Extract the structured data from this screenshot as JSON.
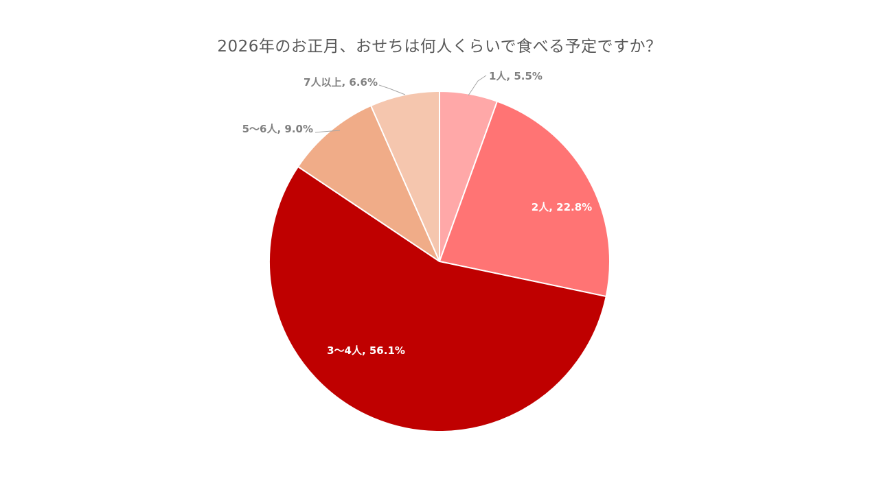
{
  "chart_data": {
    "type": "pie",
    "title": "2026年のお正月、おせちは何人くらいで食べる予定ですか？",
    "unit": "%",
    "slices": [
      {
        "label": "1人",
        "value": 5.5,
        "display": "1人, 5.5%",
        "color": "#FFA8A8",
        "label_placement": "outside"
      },
      {
        "label": "2人",
        "value": 22.8,
        "display": "2人, 22.8%",
        "color": "#FF7474",
        "label_placement": "inside"
      },
      {
        "label": "3〜4人",
        "value": 56.1,
        "display": "3〜4人, 56.1%",
        "color": "#BF0000",
        "label_placement": "inside"
      },
      {
        "label": "5〜6人",
        "value": 9.0,
        "display": "5〜6人, 9.0%",
        "color": "#F0AC88",
        "label_placement": "outside"
      },
      {
        "label": "7人以上",
        "value": 6.6,
        "display": "7人以上, 6.6%",
        "color": "#F5C6AE",
        "label_placement": "outside"
      }
    ],
    "start_angle": "12 o'clock",
    "direction": "clockwise",
    "legend": "none"
  }
}
